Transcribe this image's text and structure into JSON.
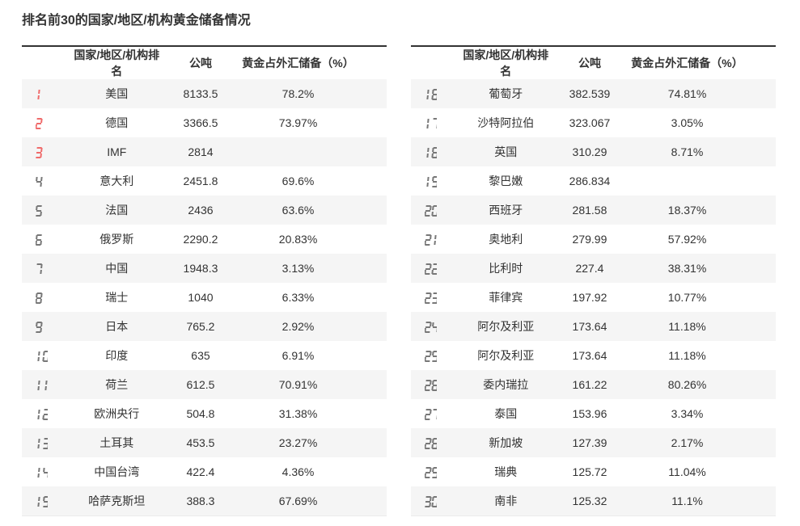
{
  "chart_data": {
    "type": "table",
    "title": "排名前30的国家/地区/机构黄金储备情况",
    "columns": [
      "国家/地区/机构排名",
      "公吨",
      "黄金占外汇储备（%）"
    ],
    "tables": [
      {
        "rows": [
          {
            "rank": 1,
            "name": "美国",
            "tons": "8133.5",
            "pct": "78.2%"
          },
          {
            "rank": 2,
            "name": "德国",
            "tons": "3366.5",
            "pct": "73.97%"
          },
          {
            "rank": 3,
            "name": "IMF",
            "tons": "2814",
            "pct": ""
          },
          {
            "rank": 4,
            "name": "意大利",
            "tons": "2451.8",
            "pct": "69.6%"
          },
          {
            "rank": 5,
            "name": "法国",
            "tons": "2436",
            "pct": "63.6%"
          },
          {
            "rank": 6,
            "name": "俄罗斯",
            "tons": "2290.2",
            "pct": "20.83%"
          },
          {
            "rank": 7,
            "name": "中国",
            "tons": "1948.3",
            "pct": "3.13%"
          },
          {
            "rank": 8,
            "name": "瑞士",
            "tons": "1040",
            "pct": "6.33%"
          },
          {
            "rank": 9,
            "name": "日本",
            "tons": "765.2",
            "pct": "2.92%"
          },
          {
            "rank": 10,
            "name": "印度",
            "tons": "635",
            "pct": "6.91%"
          },
          {
            "rank": 11,
            "name": "荷兰",
            "tons": "612.5",
            "pct": "70.91%"
          },
          {
            "rank": 12,
            "name": "欧洲央行",
            "tons": "504.8",
            "pct": "31.38%"
          },
          {
            "rank": 13,
            "name": "土耳其",
            "tons": "453.5",
            "pct": "23.27%"
          },
          {
            "rank": 14,
            "name": "中国台湾",
            "tons": "422.4",
            "pct": "4.36%"
          },
          {
            "rank": 15,
            "name": "哈萨克斯坦",
            "tons": "388.3",
            "pct": "67.69%"
          }
        ]
      },
      {
        "rows": [
          {
            "rank": 16,
            "name": "葡萄牙",
            "tons": "382.539",
            "pct": "74.81%"
          },
          {
            "rank": 17,
            "name": "沙特阿拉伯",
            "tons": "323.067",
            "pct": "3.05%"
          },
          {
            "rank": 18,
            "name": "英国",
            "tons": "310.29",
            "pct": "8.71%"
          },
          {
            "rank": 19,
            "name": "黎巴嫩",
            "tons": "286.834",
            "pct": ""
          },
          {
            "rank": 20,
            "name": "西班牙",
            "tons": "281.58",
            "pct": "18.37%"
          },
          {
            "rank": 21,
            "name": "奥地利",
            "tons": "279.99",
            "pct": "57.92%"
          },
          {
            "rank": 22,
            "name": "比利时",
            "tons": "227.4",
            "pct": "38.31%"
          },
          {
            "rank": 23,
            "name": "菲律宾",
            "tons": "197.92",
            "pct": "10.77%"
          },
          {
            "rank": 24,
            "name": "阿尔及利亚",
            "tons": "173.64",
            "pct": "11.18%"
          },
          {
            "rank": 25,
            "name": "阿尔及利亚",
            "tons": "173.64",
            "pct": "11.18%"
          },
          {
            "rank": 26,
            "name": "委内瑞拉",
            "tons": "161.22",
            "pct": "80.26%"
          },
          {
            "rank": 27,
            "name": "泰国",
            "tons": "153.96",
            "pct": "3.34%"
          },
          {
            "rank": 28,
            "name": "新加坡",
            "tons": "127.39",
            "pct": "2.17%"
          },
          {
            "rank": 29,
            "name": "瑞典",
            "tons": "125.72",
            "pct": "11.04%"
          },
          {
            "rank": 30,
            "name": "南非",
            "tons": "125.32",
            "pct": "11.1%"
          }
        ]
      }
    ]
  },
  "styles": {
    "rank_top3_color": "#f06b6b",
    "rank_color": "#787878",
    "stripe_color": "#f5f5f5",
    "header_border_color": "#333333",
    "text_color": "#333333"
  }
}
